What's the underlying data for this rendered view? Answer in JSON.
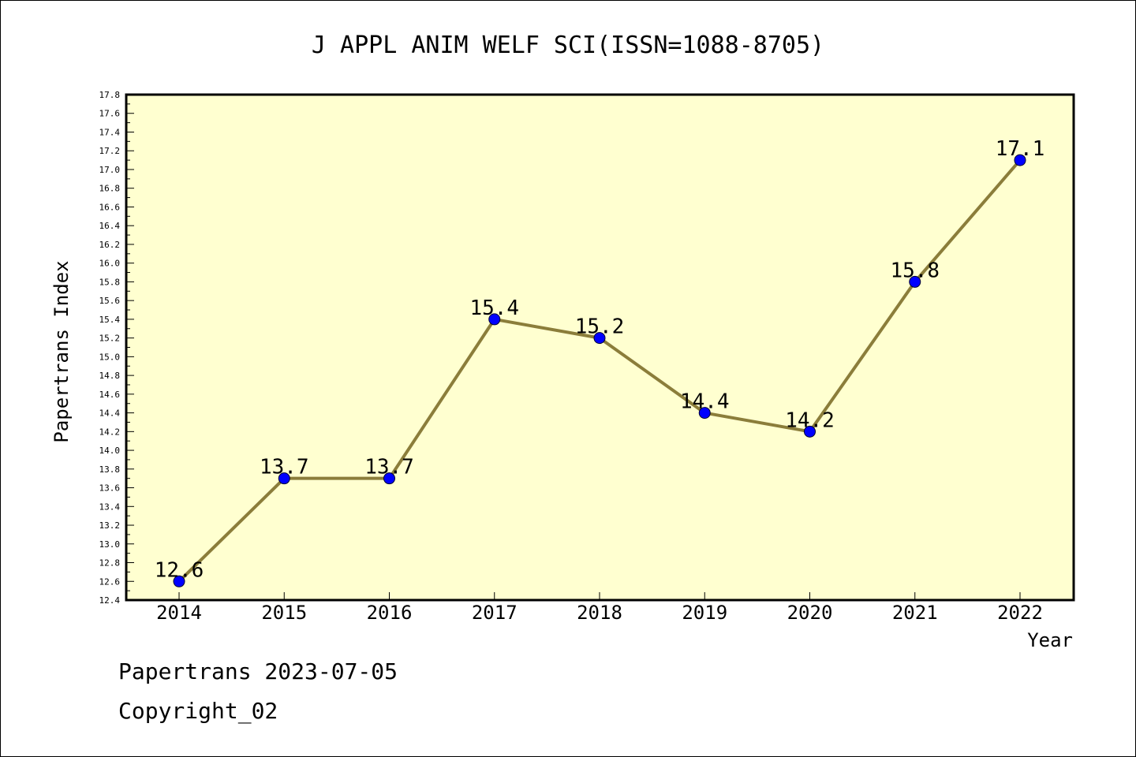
{
  "chart_data": {
    "type": "line",
    "title": "J APPL ANIM WELF SCI(ISSN=1088-8705)",
    "xlabel": "Year",
    "ylabel": "Papertrans Index",
    "categories": [
      "2014",
      "2015",
      "2016",
      "2017",
      "2018",
      "2019",
      "2020",
      "2021",
      "2022"
    ],
    "values": [
      12.6,
      13.7,
      13.7,
      15.4,
      15.2,
      14.4,
      14.2,
      15.8,
      17.1
    ],
    "data_labels": [
      "12.6",
      "13.7",
      "13.7",
      "15.4",
      "15.2",
      "14.4",
      "14.2",
      "15.8",
      "17.1"
    ],
    "ylim": [
      12.4,
      17.8
    ],
    "yticks": [
      "12.4",
      "12.6",
      "12.8",
      "13.0",
      "13.2",
      "13.4",
      "13.6",
      "13.8",
      "14.0",
      "14.2",
      "14.4",
      "14.6",
      "14.8",
      "15.0",
      "15.2",
      "15.4",
      "15.6",
      "15.8",
      "16.0",
      "16.2",
      "16.4",
      "16.6",
      "16.8",
      "17.0",
      "17.2",
      "17.4",
      "17.6",
      "17.8"
    ],
    "grid": false,
    "colors": {
      "plot_background": "#ffffd0",
      "line": "#8b7d3a",
      "marker": "#0000ff",
      "axis": "#000000"
    }
  },
  "footer": {
    "line1": "Papertrans 2023-07-05",
    "line2": "Copyright_02"
  }
}
